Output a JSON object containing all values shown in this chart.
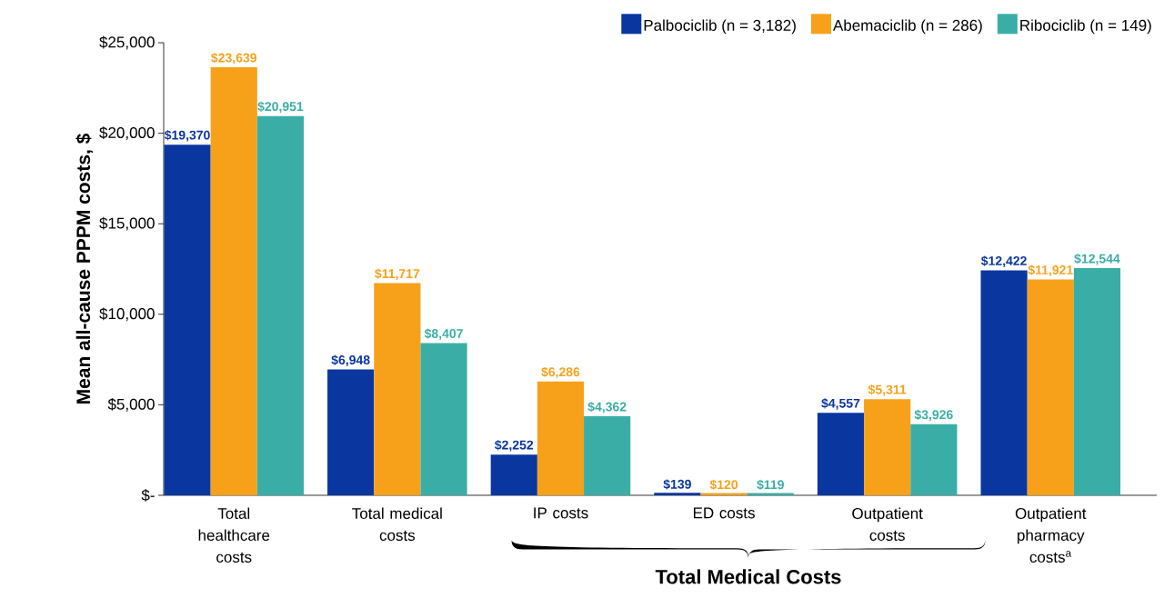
{
  "chart_data": {
    "type": "bar",
    "categories": [
      "Total healthcare costs",
      "Total medical costs",
      "IP costs",
      "ED costs",
      "Outpatient costs",
      "Outpatient pharmacy costs$^{a}$"
    ],
    "series": [
      {
        "name": "Palbociclib (n = 3,182)",
        "color": "#0a36a0",
        "values": [
          19370,
          6948,
          2252,
          139,
          4557,
          12422
        ],
        "value_labels": [
          "$19,370",
          "$6,948",
          "$2,252",
          "$139",
          "$4,557",
          "$12,422"
        ]
      },
      {
        "name": "Abemaciclib (n = 286)",
        "color": "#f7a11a",
        "values": [
          23639,
          11717,
          6286,
          120,
          5311,
          11921
        ],
        "value_labels": [
          "$23,639",
          "$11,717",
          "$6,286",
          "$120",
          "$5,311",
          "$11,921"
        ]
      },
      {
        "name": "Ribociclib (n = 149)",
        "color": "#3aaea6",
        "values": [
          20951,
          8407,
          4362,
          119,
          3926,
          12544
        ],
        "value_labels": [
          "$20,951",
          "$8,407",
          "$4,362",
          "$119",
          "$3,926",
          "$12,544"
        ]
      }
    ],
    "ylabel": "Mean all-cause PPPM costs, $",
    "ylim": [
      0,
      25000
    ],
    "yticks": [
      {
        "value": 0,
        "label": "$-"
      },
      {
        "value": 5000,
        "label": "$5,000"
      },
      {
        "value": 10000,
        "label": "$10,000"
      },
      {
        "value": 15000,
        "label": "$15,000"
      },
      {
        "value": 20000,
        "label": "$20,000"
      },
      {
        "value": 25000,
        "label": "$25,000"
      }
    ],
    "annotations": [
      "Total Medical Costs"
    ],
    "legend": "top right",
    "grid": false
  }
}
